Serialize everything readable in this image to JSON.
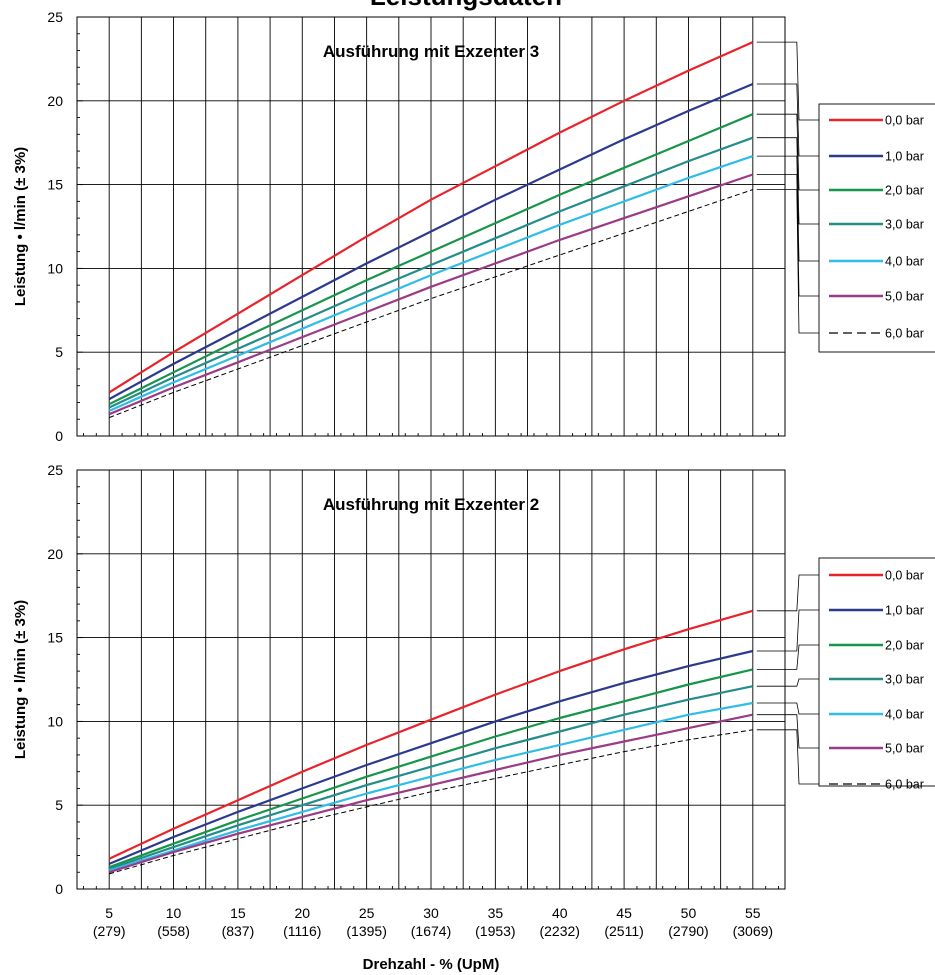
{
  "page_title": "Leistungsdaten",
  "colors": {
    "0,0 bar": "#e8232a",
    "1,0 bar": "#2b3a8e",
    "2,0 bar": "#17954a",
    "3,0 bar": "#238d8a",
    "4,0 bar": "#2fbde8",
    "5,0 bar": "#9b3b86",
    "6,0 bar": "#000000"
  },
  "chart_data": [
    {
      "type": "line",
      "title": "Ausführung mit Exzenter 3",
      "xlabel": "Drehzahl - % (UpM)",
      "ylabel": "Leistung • l/min (± 3%)",
      "xlim": [
        2.5,
        57.5
      ],
      "ylim": [
        0,
        25
      ],
      "x_ticks": [
        5,
        10,
        15,
        20,
        25,
        30,
        35,
        40,
        45,
        50,
        55
      ],
      "x_tick_labels": [
        "5",
        "10",
        "15",
        "20",
        "25",
        "30",
        "35",
        "40",
        "45",
        "50",
        "55"
      ],
      "x_tick_sublabels": [
        "(279)",
        "(558)",
        "(837)",
        "(1116)",
        "(1395)",
        "(1674)",
        "(1953)",
        "(2232)",
        "(2511)",
        "(2790)",
        "(3069)"
      ],
      "y_ticks": [
        0,
        5,
        10,
        15,
        20,
        25
      ],
      "grid": true,
      "legend_position": "right",
      "x": [
        5,
        10,
        15,
        20,
        25,
        30,
        35,
        40,
        45,
        50,
        55
      ],
      "series": [
        {
          "name": "0,0 bar",
          "style": "solid",
          "values": [
            2.6,
            5.0,
            7.3,
            9.6,
            11.9,
            14.1,
            16.1,
            18.1,
            20.0,
            21.8,
            23.5
          ]
        },
        {
          "name": "1,0 bar",
          "style": "solid",
          "values": [
            2.2,
            4.3,
            6.3,
            8.3,
            10.3,
            12.2,
            14.1,
            15.9,
            17.7,
            19.4,
            21.0
          ]
        },
        {
          "name": "2,0 bar",
          "style": "solid",
          "values": [
            1.9,
            3.8,
            5.7,
            7.5,
            9.3,
            11.0,
            12.7,
            14.4,
            16.0,
            17.6,
            19.2
          ]
        },
        {
          "name": "3,0 bar",
          "style": "solid",
          "values": [
            1.7,
            3.5,
            5.2,
            6.9,
            8.6,
            10.2,
            11.8,
            13.4,
            14.9,
            16.4,
            17.8
          ]
        },
        {
          "name": "4,0 bar",
          "style": "solid",
          "values": [
            1.5,
            3.2,
            4.8,
            6.4,
            8.0,
            9.6,
            11.1,
            12.6,
            14.0,
            15.4,
            16.7
          ]
        },
        {
          "name": "5,0 bar",
          "style": "solid",
          "values": [
            1.3,
            2.9,
            4.4,
            5.9,
            7.4,
            8.9,
            10.3,
            11.7,
            13.0,
            14.3,
            15.6
          ]
        },
        {
          "name": "6,0 bar",
          "style": "dashed",
          "values": [
            1.1,
            2.6,
            4.0,
            5.4,
            6.8,
            8.2,
            9.5,
            10.8,
            12.1,
            13.4,
            14.7
          ]
        }
      ]
    },
    {
      "type": "line",
      "title": "Ausführung mit Exzenter 2",
      "xlabel": "Drehzahl - % (UpM)",
      "ylabel": "Leistung • l/min (± 3%)",
      "xlim": [
        2.5,
        57.5
      ],
      "ylim": [
        0,
        25
      ],
      "x_ticks": [
        5,
        10,
        15,
        20,
        25,
        30,
        35,
        40,
        45,
        50,
        55
      ],
      "x_tick_labels": [
        "5",
        "10",
        "15",
        "20",
        "25",
        "30",
        "35",
        "40",
        "45",
        "50",
        "55"
      ],
      "x_tick_sublabels": [
        "(279)",
        "(558)",
        "(837)",
        "(1116)",
        "(1395)",
        "(1674)",
        "(1953)",
        "(2232)",
        "(2511)",
        "(2790)",
        "(3069)"
      ],
      "y_ticks": [
        0,
        5,
        10,
        15,
        20,
        25
      ],
      "grid": true,
      "legend_position": "right",
      "x": [
        5,
        10,
        15,
        20,
        25,
        30,
        35,
        40,
        45,
        50,
        55
      ],
      "series": [
        {
          "name": "0,0 bar",
          "style": "solid",
          "values": [
            1.8,
            3.6,
            5.3,
            7.0,
            8.6,
            10.1,
            11.6,
            13.0,
            14.3,
            15.5,
            16.6
          ]
        },
        {
          "name": "1,0 bar",
          "style": "solid",
          "values": [
            1.5,
            3.1,
            4.6,
            6.0,
            7.4,
            8.7,
            10.0,
            11.2,
            12.3,
            13.3,
            14.2
          ]
        },
        {
          "name": "2,0 bar",
          "style": "solid",
          "values": [
            1.3,
            2.7,
            4.1,
            5.4,
            6.7,
            7.9,
            9.1,
            10.2,
            11.2,
            12.2,
            13.1
          ]
        },
        {
          "name": "3,0 bar",
          "style": "solid",
          "values": [
            1.2,
            2.5,
            3.8,
            5.0,
            6.2,
            7.3,
            8.4,
            9.4,
            10.4,
            11.3,
            12.1
          ]
        },
        {
          "name": "4,0 bar",
          "style": "solid",
          "values": [
            1.1,
            2.3,
            3.5,
            4.6,
            5.7,
            6.7,
            7.7,
            8.6,
            9.5,
            10.4,
            11.1
          ]
        },
        {
          "name": "5,0 bar",
          "style": "solid",
          "values": [
            1.0,
            2.2,
            3.3,
            4.3,
            5.3,
            6.2,
            7.1,
            8.0,
            8.8,
            9.6,
            10.4
          ]
        },
        {
          "name": "6,0 bar",
          "style": "dashed",
          "values": [
            0.9,
            2.0,
            3.0,
            4.0,
            4.9,
            5.8,
            6.6,
            7.4,
            8.2,
            8.9,
            9.5
          ]
        }
      ]
    }
  ]
}
